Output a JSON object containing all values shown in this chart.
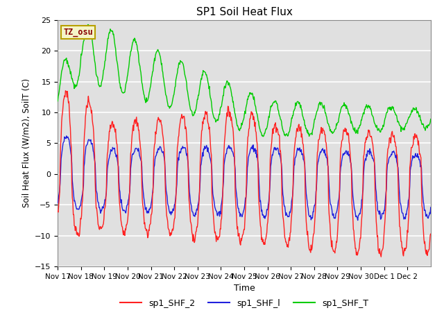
{
  "title": "SP1 Soil Heat Flux",
  "xlabel": "Time",
  "ylabel": "Soil Heat Flux (W/m2), SoilT (C)",
  "ylim": [
    -15,
    25
  ],
  "bg_color": "#e0e0e0",
  "tz_label": "TZ_osu",
  "tz_box_color": "#f5f5c8",
  "tz_text_color": "#880000",
  "tz_edge_color": "#b8a000",
  "series_colors": {
    "sp1_SHF_2": "#ff2020",
    "sp1_SHF_l": "#2020dd",
    "sp1_SHF_T": "#00cc00"
  },
  "x_ticks": [
    "Nov 17",
    "Nov 18",
    "Nov 19",
    "Nov 20",
    "Nov 21",
    "Nov 22",
    "Nov 23",
    "Nov 24",
    "Nov 25",
    "Nov 26",
    "Nov 27",
    "Nov 28",
    "Nov 29",
    "Nov 30",
    "Dec 1",
    "Dec 2"
  ],
  "yticks": [
    -15,
    -10,
    -5,
    0,
    5,
    10,
    15,
    20,
    25
  ],
  "grid_color": "#ffffff",
  "n_days": 16
}
